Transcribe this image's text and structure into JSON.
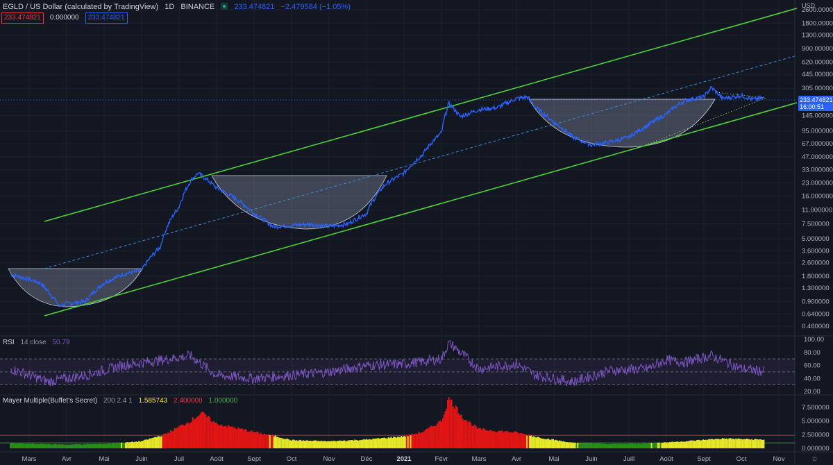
{
  "header": {
    "symbol": "EGLD / US Dollar (calculated by TradingView)",
    "interval": "1D",
    "exchange": "BINANCE",
    "last_price": "233.474821",
    "change": "−2.479584 (−1.05%)",
    "box1": "233.474821",
    "box_mid": "0.000000",
    "box2": "233.474821",
    "currency": "USD",
    "price_label": "233.474821",
    "countdown": "16:00:51",
    "colors": {
      "price": "#2962ff",
      "box1": "#f23645",
      "channel": "#4cd137"
    }
  },
  "rsi": {
    "label": "RSI",
    "params": "14 close",
    "value": "50.79",
    "color": "#7e57c2"
  },
  "mayer": {
    "label": "Mayer Multiple(Buffet's Secret)",
    "params": "200 2.4 1",
    "value": "1.585743",
    "upper": "2.400000",
    "lower": "1.000000",
    "colors": {
      "value": "#ffeb3b",
      "upper": "#f23645",
      "lower": "#4caf50"
    }
  },
  "chart_data": [
    {
      "type": "line",
      "name": "price",
      "y_scale": "log",
      "yticks": [
        "2600.000000",
        "1800.000000",
        "1300.000000",
        "900.000000",
        "620.000000",
        "445.000000",
        "305.000000",
        "145.000000",
        "95.000000",
        "67.000000",
        "47.000000",
        "33.000000",
        "23.000000",
        "16.000000",
        "11.000000",
        "7.500000",
        "5.000000",
        "3.600000",
        "2.600000",
        "1.800000",
        "1.300000",
        "0.900000",
        "0.640000",
        "0.460000"
      ],
      "ytick_values": [
        2600,
        1800,
        1300,
        900,
        620,
        445,
        305,
        145,
        95,
        67,
        47,
        33,
        23,
        16,
        11,
        7.5,
        5,
        3.6,
        2.6,
        1.8,
        1.3,
        0.9,
        0.64,
        0.46
      ],
      "xticks": [
        "Mars",
        "Avr",
        "Mai",
        "Juin",
        "Juil",
        "Août",
        "Sept",
        "Oct",
        "Nov",
        "Déc",
        "2021",
        "Févr",
        "Mars",
        "Avr",
        "Mai",
        "Juin",
        "Juill",
        "Août",
        "Sept",
        "Oct",
        "Nov"
      ],
      "xtick_months": [
        0,
        1,
        2,
        3,
        4,
        5,
        6,
        7,
        8,
        9,
        10,
        11,
        12,
        13,
        14,
        15,
        16,
        17,
        18,
        19,
        20
      ],
      "series_key": [
        [
          -0.5,
          1.9
        ],
        [
          0.3,
          1.5
        ],
        [
          0.5,
          1.2
        ],
        [
          0.8,
          0.8
        ],
        [
          1.0,
          0.85
        ],
        [
          1.5,
          0.9
        ],
        [
          2.0,
          1.5
        ],
        [
          2.5,
          1.9
        ],
        [
          3.0,
          2.1
        ],
        [
          3.5,
          4.0
        ],
        [
          4.0,
          12
        ],
        [
          4.3,
          24
        ],
        [
          4.5,
          30
        ],
        [
          5.0,
          20
        ],
        [
          5.5,
          15
        ],
        [
          6.0,
          10
        ],
        [
          6.5,
          7
        ],
        [
          7.0,
          7.2
        ],
        [
          7.5,
          7.5
        ],
        [
          8.0,
          7.0
        ],
        [
          8.5,
          7.5
        ],
        [
          9.0,
          10
        ],
        [
          9.5,
          22
        ],
        [
          10.0,
          30
        ],
        [
          10.5,
          50
        ],
        [
          11.0,
          90
        ],
        [
          11.2,
          200
        ],
        [
          11.5,
          140
        ],
        [
          12.0,
          170
        ],
        [
          12.5,
          180
        ],
        [
          13.0,
          230
        ],
        [
          13.3,
          240
        ],
        [
          13.5,
          180
        ],
        [
          14.0,
          120
        ],
        [
          14.5,
          80
        ],
        [
          15.0,
          65
        ],
        [
          15.5,
          70
        ],
        [
          16.0,
          80
        ],
        [
          16.5,
          110
        ],
        [
          17.0,
          150
        ],
        [
          17.5,
          220
        ],
        [
          18.0,
          240
        ],
        [
          18.2,
          310
        ],
        [
          18.5,
          230
        ],
        [
          19.0,
          250
        ],
        [
          19.3,
          225
        ],
        [
          19.6,
          233.47
        ]
      ]
    },
    {
      "type": "line",
      "name": "RSI",
      "yticks": [
        "100.00",
        "80.00",
        "60.00",
        "40.00",
        "20.00"
      ],
      "ytick_values": [
        100,
        80,
        60,
        40,
        20
      ],
      "bands": [
        70,
        50,
        30
      ],
      "series_key": [
        [
          -0.5,
          55
        ],
        [
          0.5,
          35
        ],
        [
          1.5,
          45
        ],
        [
          2.5,
          60
        ],
        [
          3.5,
          68
        ],
        [
          4.3,
          75
        ],
        [
          5.0,
          45
        ],
        [
          6.0,
          40
        ],
        [
          7.0,
          45
        ],
        [
          8.0,
          50
        ],
        [
          9.0,
          60
        ],
        [
          10.0,
          62
        ],
        [
          11.0,
          70
        ],
        [
          11.2,
          95
        ],
        [
          12.0,
          55
        ],
        [
          13.0,
          62
        ],
        [
          13.5,
          45
        ],
        [
          14.5,
          35
        ],
        [
          15.5,
          52
        ],
        [
          16.5,
          55
        ],
        [
          17.0,
          68
        ],
        [
          17.5,
          65
        ],
        [
          18.2,
          75
        ],
        [
          19.0,
          55
        ],
        [
          19.6,
          50.79
        ]
      ]
    },
    {
      "type": "bar",
      "name": "Mayer Multiple",
      "yticks": [
        "7.500000",
        "5.000000",
        "2.500000",
        "0.000000"
      ],
      "ytick_values": [
        7.5,
        5,
        2.5,
        0
      ],
      "thresholds": [
        2.4,
        1.0
      ],
      "series_key": [
        [
          -0.5,
          0.9
        ],
        [
          1.0,
          0.7
        ],
        [
          2.0,
          0.8
        ],
        [
          2.5,
          1.0
        ],
        [
          3.0,
          1.3
        ],
        [
          3.6,
          2.5
        ],
        [
          4.3,
          5.0
        ],
        [
          4.6,
          6.5
        ],
        [
          5.0,
          4.5
        ],
        [
          6.0,
          3.0
        ],
        [
          6.6,
          2.2
        ],
        [
          7.0,
          1.5
        ],
        [
          8.0,
          1.3
        ],
        [
          9.0,
          1.6
        ],
        [
          10.0,
          2.2
        ],
        [
          10.5,
          3.0
        ],
        [
          11.0,
          5.0
        ],
        [
          11.2,
          9.2
        ],
        [
          11.6,
          5.5
        ],
        [
          12.0,
          3.5
        ],
        [
          13.0,
          2.9
        ],
        [
          13.6,
          2.0
        ],
        [
          14.5,
          1.0
        ],
        [
          15.5,
          0.8
        ],
        [
          16.5,
          0.9
        ],
        [
          17.5,
          1.3
        ],
        [
          18.5,
          1.8
        ],
        [
          19.6,
          1.59
        ]
      ]
    }
  ]
}
